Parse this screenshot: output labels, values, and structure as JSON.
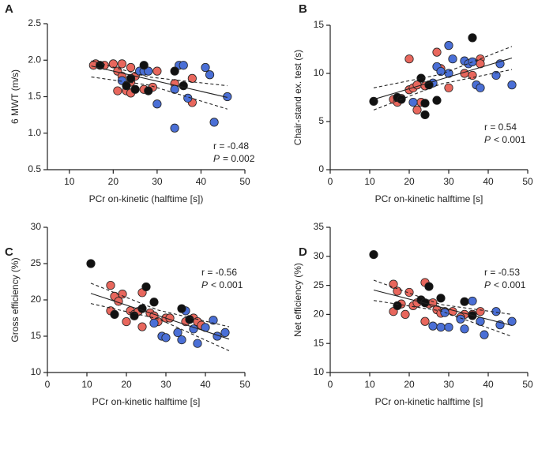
{
  "chart_data": [
    {
      "type": "scatter",
      "panel": "A",
      "x_label": "PCr on-kinetic (halftime [s])",
      "y_label": "6 MWT (m/s)",
      "r_text": "r = -0.48",
      "p_symbol": "P",
      "p_text": "= 0.002",
      "xlim": [
        5,
        50
      ],
      "ylim": [
        0.5,
        2.5
      ],
      "xticks": [
        10,
        20,
        30,
        40,
        50
      ],
      "yticks": [
        0.5,
        {
          "value": 1.0,
          "label": "1.0"
        },
        1.5,
        {
          "value": 2.0,
          "label": "2.0"
        },
        2.5
      ],
      "series": [
        {
          "color": "#e8675d",
          "x": [
            16,
            15.5,
            18,
            20,
            21,
            21,
            22,
            22,
            23,
            24,
            24,
            24,
            25,
            29,
            30,
            34,
            38,
            38,
            27
          ],
          "values": [
            1.95,
            1.93,
            1.93,
            1.95,
            1.58,
            1.85,
            1.95,
            1.78,
            1.58,
            1.9,
            1.7,
            1.55,
            1.78,
            1.63,
            1.85,
            1.68,
            1.42,
            1.75,
            1.6
          ]
        },
        {
          "color": "#4a6fd6",
          "x": [
            22,
            26,
            27,
            28,
            30,
            34,
            35,
            36,
            37,
            41,
            42,
            43,
            46,
            34
          ],
          "values": [
            1.72,
            1.85,
            1.85,
            1.85,
            1.4,
            1.07,
            1.93,
            1.93,
            1.48,
            1.9,
            1.8,
            1.15,
            1.5,
            1.6
          ]
        },
        {
          "color": "#111111",
          "x": [
            17,
            23,
            24,
            25,
            27,
            28,
            34,
            36
          ],
          "values": [
            1.93,
            1.65,
            1.75,
            1.6,
            1.93,
            1.58,
            1.85,
            1.65
          ]
        }
      ],
      "lines": [
        {
          "dashed": false,
          "x": [
            15,
            46
          ],
          "values": [
            1.92,
            1.49
          ]
        },
        {
          "dashed": true,
          "x": [
            15,
            28,
            46
          ],
          "values": [
            1.99,
            1.77,
            1.65
          ]
        },
        {
          "dashed": true,
          "x": [
            15,
            28,
            46
          ],
          "values": [
            1.77,
            1.66,
            1.33
          ]
        }
      ]
    },
    {
      "type": "scatter",
      "panel": "B",
      "x_label": "PCr on-kinetic halftime [s]",
      "y_label": "Chair-stand ex. test (s)",
      "r_text": "r = 0.54",
      "p_symbol": "P",
      "p_text": "< 0.001",
      "xlim": [
        0,
        50
      ],
      "ylim": [
        0,
        15
      ],
      "xticks": [
        0,
        10,
        20,
        30,
        40,
        50
      ],
      "yticks": [
        0,
        5,
        10,
        15
      ],
      "series": [
        {
          "color": "#e8675d",
          "x": [
            16,
            17,
            18,
            20,
            20,
            21,
            22,
            22,
            23,
            24,
            27,
            28,
            30,
            34,
            36,
            38,
            38
          ],
          "values": [
            7.3,
            7.0,
            7.4,
            11.5,
            8.3,
            8.5,
            8.8,
            6.2,
            7.0,
            8.7,
            12.2,
            10.5,
            8.5,
            10.0,
            9.8,
            11.5,
            11.0
          ]
        },
        {
          "color": "#4a6fd6",
          "x": [
            21,
            26,
            27,
            28,
            30,
            31,
            34,
            35,
            36,
            37,
            38,
            42,
            43,
            46,
            30
          ],
          "values": [
            7.0,
            9.0,
            10.7,
            10.2,
            12.9,
            11.5,
            11.3,
            11.0,
            11.2,
            8.8,
            8.5,
            9.8,
            11.0,
            8.8,
            10.0
          ]
        },
        {
          "color": "#111111",
          "x": [
            11,
            17,
            18,
            23,
            24,
            24,
            25,
            27,
            36
          ],
          "values": [
            7.1,
            7.5,
            7.3,
            9.5,
            5.7,
            6.9,
            8.8,
            7.2,
            13.7
          ]
        }
      ],
      "lines": [
        {
          "dashed": false,
          "x": [
            11,
            46
          ],
          "values": [
            7.3,
            11.6
          ]
        },
        {
          "dashed": true,
          "x": [
            11,
            28,
            46
          ],
          "values": [
            8.5,
            9.9,
            12.8
          ]
        },
        {
          "dashed": true,
          "x": [
            11,
            28,
            46
          ],
          "values": [
            6.2,
            8.9,
            10.4
          ]
        }
      ]
    },
    {
      "type": "scatter",
      "panel": "C",
      "x_label": "PCr on-kinetic halftime [s]",
      "y_label": "Gross efficiency (%)",
      "r_text": "r = -0.56",
      "p_symbol": "P",
      "p_text": "< 0.001",
      "xlim": [
        0,
        50
      ],
      "ylim": [
        10,
        30
      ],
      "xticks": [
        0,
        10,
        20,
        30,
        40,
        50
      ],
      "yticks": [
        10,
        15,
        20,
        25,
        30
      ],
      "series": [
        {
          "color": "#e8675d",
          "x": [
            16,
            16,
            17,
            18,
            19,
            20,
            21,
            22,
            24,
            24,
            26,
            27,
            28,
            30,
            31,
            35,
            37,
            38,
            39,
            23
          ],
          "values": [
            22.0,
            18.5,
            20.5,
            19.8,
            20.8,
            17.0,
            18.5,
            18.0,
            16.3,
            21.0,
            18.2,
            17.8,
            17.0,
            17.5,
            17.5,
            17.0,
            17.5,
            17.0,
            16.5,
            18.4
          ]
        },
        {
          "color": "#4a6fd6",
          "x": [
            27,
            29,
            30,
            33,
            34,
            35,
            37,
            38,
            42,
            43,
            45,
            40
          ],
          "values": [
            16.8,
            15.0,
            14.8,
            15.5,
            14.5,
            18.5,
            16.0,
            14.0,
            17.2,
            15.0,
            15.5,
            16.2
          ]
        },
        {
          "color": "#111111",
          "x": [
            11,
            17,
            22,
            24,
            25,
            27,
            34,
            36
          ],
          "values": [
            25.0,
            18.0,
            17.8,
            18.8,
            21.8,
            19.7,
            18.8,
            17.3
          ]
        }
      ],
      "lines": [
        {
          "dashed": false,
          "x": [
            11,
            46
          ],
          "values": [
            20.9,
            14.6
          ]
        },
        {
          "dashed": true,
          "x": [
            11,
            28,
            46
          ],
          "values": [
            22.3,
            18.6,
            16.3
          ]
        },
        {
          "dashed": true,
          "x": [
            11,
            28,
            46
          ],
          "values": [
            19.5,
            17.4,
            13.0
          ]
        }
      ]
    },
    {
      "type": "scatter",
      "panel": "D",
      "x_label": "PCr on-kinetic halftime [s]",
      "y_label": "Net efficiency (%)",
      "r_text": "r = -0.53",
      "p_symbol": "P",
      "p_text": "< 0.001",
      "xlim": [
        0,
        50
      ],
      "ylim": [
        10,
        35
      ],
      "xticks": [
        0,
        10,
        20,
        30,
        40,
        50
      ],
      "yticks": [
        10,
        15,
        20,
        25,
        30,
        35
      ],
      "series": [
        {
          "color": "#e8675d",
          "x": [
            16,
            16,
            17,
            18,
            19,
            20,
            21,
            22,
            24,
            24,
            25,
            26,
            27,
            28,
            29,
            31,
            34,
            36,
            38,
            33
          ],
          "values": [
            25.2,
            20.5,
            24.0,
            21.8,
            20.0,
            23.8,
            21.5,
            22.0,
            25.5,
            18.8,
            21.8,
            22.0,
            20.8,
            20.2,
            20.5,
            20.5,
            20.0,
            20.0,
            20.5,
            19.5
          ]
        },
        {
          "color": "#4a6fd6",
          "x": [
            26,
            28,
            30,
            33,
            34,
            36,
            38,
            39,
            42,
            43,
            46,
            29
          ],
          "values": [
            18.0,
            17.8,
            17.8,
            19.2,
            17.5,
            22.3,
            18.8,
            16.5,
            20.5,
            18.2,
            18.8,
            20.3
          ]
        },
        {
          "color": "#111111",
          "x": [
            11,
            17,
            23,
            24,
            25,
            28,
            34,
            36
          ],
          "values": [
            30.3,
            21.5,
            22.5,
            22.0,
            24.8,
            22.8,
            22.2,
            19.8
          ]
        }
      ],
      "lines": [
        {
          "dashed": false,
          "x": [
            11,
            46
          ],
          "values": [
            24.2,
            18.1
          ]
        },
        {
          "dashed": true,
          "x": [
            11,
            28,
            46
          ],
          "values": [
            25.9,
            21.7,
            20.0
          ]
        },
        {
          "dashed": true,
          "x": [
            11,
            28,
            46
          ],
          "values": [
            22.4,
            20.6,
            16.2
          ]
        }
      ]
    }
  ]
}
